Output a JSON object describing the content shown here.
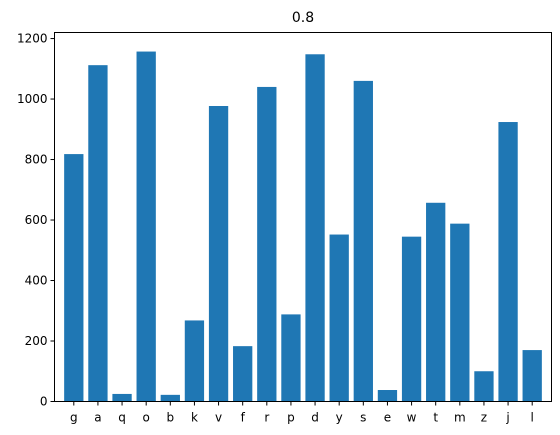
{
  "chart_data": {
    "type": "bar",
    "title": "0.8",
    "xlabel": "",
    "ylabel": "",
    "categories": [
      "g",
      "a",
      "q",
      "o",
      "b",
      "k",
      "v",
      "f",
      "r",
      "p",
      "d",
      "y",
      "s",
      "e",
      "w",
      "t",
      "m",
      "z",
      "j",
      "l"
    ],
    "values": [
      818,
      1112,
      25,
      1157,
      22,
      268,
      977,
      183,
      1040,
      288,
      1148,
      552,
      1060,
      38,
      545,
      657,
      588,
      100,
      924,
      170
    ],
    "ylim": [
      0,
      1220
    ],
    "yticks": [
      0,
      200,
      400,
      600,
      800,
      1000,
      1200
    ],
    "grid": false,
    "bar_color": "#1f77b4"
  }
}
